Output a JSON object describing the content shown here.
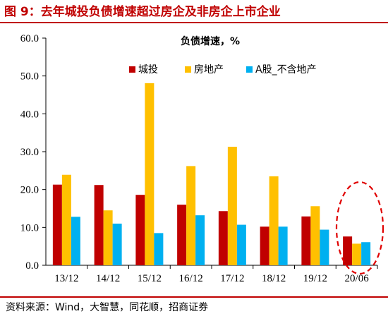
{
  "figure": {
    "title": "图 9：去年城投负债增速超过房企及非房企上市企业",
    "source": "资料来源：Wind，大智慧，同花顺，招商证券"
  },
  "chart_data": {
    "type": "bar",
    "title": "负债增速，%",
    "xlabel": "",
    "ylabel": "",
    "categories": [
      "13/12",
      "14/12",
      "15/12",
      "16/12",
      "17/12",
      "18/12",
      "19/12",
      "20/06"
    ],
    "ylim": [
      0,
      60
    ],
    "yticks": [
      "0.0",
      "10.0",
      "20.0",
      "30.0",
      "40.0",
      "50.0",
      "60.0"
    ],
    "grid": false,
    "legend": "top-right",
    "series": [
      {
        "name": "城投",
        "color": "#c00000",
        "values": [
          21.3,
          21.2,
          18.6,
          16.0,
          14.3,
          10.2,
          12.9,
          7.6
        ]
      },
      {
        "name": "房地产",
        "color": "#ffc000",
        "values": [
          23.9,
          14.5,
          48.1,
          26.2,
          31.3,
          23.5,
          15.6,
          5.7
        ]
      },
      {
        "name": "A股_不含地产",
        "color": "#00b0f0",
        "values": [
          12.8,
          11.0,
          8.5,
          13.2,
          10.7,
          10.2,
          9.4,
          6.1
        ]
      }
    ],
    "annotation": "dashed red ellipse highlighting 20/06"
  }
}
